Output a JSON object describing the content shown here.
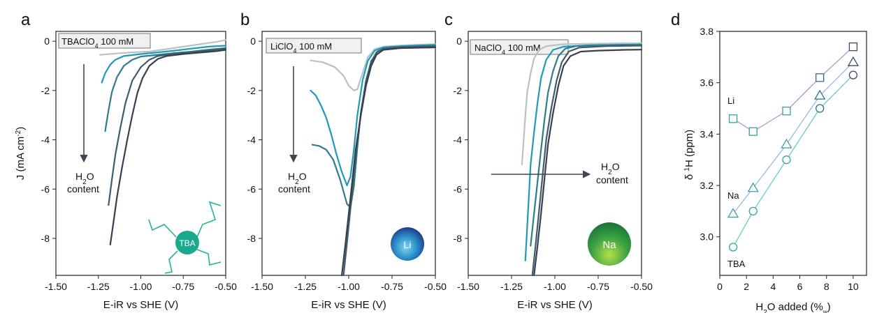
{
  "chart_data": [
    {
      "type": "line",
      "panel_label": "a",
      "box_label": "TBAClO",
      "box_label_sub": "4",
      "box_label_rest": " 100 mM",
      "xlabel": "E-iR vs SHE (V)",
      "ylabel_main": "J (mA cm",
      "ylabel_sup": "-2",
      "ylabel_end": ")",
      "xlim": [
        -1.5,
        -0.5
      ],
      "ylim": [
        -9.5,
        0.4
      ],
      "xticks": [
        -1.5,
        -1.25,
        -1.0,
        -0.75,
        -0.5
      ],
      "xtick_labels": [
        "-1.50",
        "-1.25",
        "-1.00",
        "-0.75",
        "-0.50"
      ],
      "yticks": [
        0,
        -2,
        -4,
        -6,
        -8
      ],
      "ytick_labels": [
        "0",
        "-2",
        "-4",
        "-6",
        "-8"
      ],
      "annotation": {
        "line1_pre": "H",
        "line1_sub": "2",
        "line1_post": "O",
        "line2": "content",
        "direction": "down"
      },
      "badge": {
        "text": "TBA",
        "color": "#1aa88e"
      },
      "series": [
        {
          "color": "#b6c3c6",
          "points": [
            [
              -1.24,
              -0.55
            ],
            [
              -1.15,
              -0.5
            ],
            [
              -1.05,
              -0.45
            ],
            [
              -0.95,
              -0.42
            ],
            [
              -0.85,
              -0.32
            ],
            [
              -0.75,
              -0.22
            ],
            [
              -0.65,
              -0.12
            ],
            [
              -0.55,
              -0.02
            ],
            [
              -0.5,
              0.05
            ]
          ]
        },
        {
          "color": "#1e9ab8",
          "points": [
            [
              -1.23,
              -1.68
            ],
            [
              -1.21,
              -1.3
            ],
            [
              -1.18,
              -0.95
            ],
            [
              -1.15,
              -0.75
            ],
            [
              -1.1,
              -0.6
            ],
            [
              -1.0,
              -0.52
            ],
            [
              -0.9,
              -0.45
            ],
            [
              -0.8,
              -0.38
            ],
            [
              -0.7,
              -0.3
            ],
            [
              -0.6,
              -0.22
            ],
            [
              -0.5,
              -0.18
            ]
          ]
        },
        {
          "color": "#2d7d8c",
          "points": [
            [
              -1.21,
              -3.65
            ],
            [
              -1.19,
              -2.8
            ],
            [
              -1.17,
              -2.05
            ],
            [
              -1.14,
              -1.45
            ],
            [
              -1.1,
              -1.0
            ],
            [
              -1.05,
              -0.75
            ],
            [
              -1.0,
              -0.62
            ],
            [
              -0.9,
              -0.55
            ],
            [
              -0.8,
              -0.48
            ],
            [
              -0.7,
              -0.42
            ],
            [
              -0.6,
              -0.34
            ],
            [
              -0.5,
              -0.28
            ]
          ]
        },
        {
          "color": "#3e5c6b",
          "points": [
            [
              -1.19,
              -6.65
            ],
            [
              -1.17,
              -5.6
            ],
            [
              -1.15,
              -4.6
            ],
            [
              -1.12,
              -3.5
            ],
            [
              -1.09,
              -2.5
            ],
            [
              -1.05,
              -1.6
            ],
            [
              -1.0,
              -1.05
            ],
            [
              -0.95,
              -0.75
            ],
            [
              -0.9,
              -0.6
            ],
            [
              -0.8,
              -0.5
            ],
            [
              -0.7,
              -0.45
            ],
            [
              -0.6,
              -0.38
            ],
            [
              -0.5,
              -0.3
            ]
          ]
        },
        {
          "color": "#3b3d4e",
          "points": [
            [
              -1.18,
              -8.25
            ],
            [
              -1.16,
              -7.3
            ],
            [
              -1.14,
              -6.3
            ],
            [
              -1.11,
              -5.1
            ],
            [
              -1.08,
              -4.0
            ],
            [
              -1.05,
              -3.0
            ],
            [
              -1.02,
              -2.1
            ],
            [
              -0.99,
              -1.5
            ],
            [
              -0.95,
              -1.0
            ],
            [
              -0.9,
              -0.72
            ],
            [
              -0.85,
              -0.6
            ],
            [
              -0.75,
              -0.52
            ],
            [
              -0.65,
              -0.46
            ],
            [
              -0.55,
              -0.4
            ],
            [
              -0.5,
              -0.35
            ]
          ]
        }
      ]
    },
    {
      "type": "line",
      "panel_label": "b",
      "box_label": "LiClO",
      "box_label_sub": "4",
      "box_label_rest": " 100 mM",
      "xlabel": "E-iR vs SHE (V)",
      "xlim": [
        -1.5,
        -0.5
      ],
      "ylim": [
        -9.5,
        0.4
      ],
      "xticks": [
        -1.5,
        -1.25,
        -1.0,
        -0.75,
        -0.5
      ],
      "xtick_labels": [
        "-1.50",
        "-1.25",
        "-1.00",
        "-0.75",
        "-0.50"
      ],
      "yticks": [
        0,
        -2,
        -4,
        -6,
        -8
      ],
      "ytick_labels": [
        "0",
        "-2",
        "-4",
        "-6",
        "-8"
      ],
      "annotation": {
        "line1_pre": "H",
        "line1_sub": "2",
        "line1_post": "O",
        "line2": "content",
        "direction": "down"
      },
      "badge": {
        "text": "Li",
        "color": "#2a8fc9"
      },
      "series": [
        {
          "color": "#b6c3c6",
          "points": [
            [
              -1.22,
              -0.78
            ],
            [
              -1.15,
              -0.85
            ],
            [
              -1.08,
              -1.05
            ],
            [
              -1.03,
              -1.4
            ],
            [
              -1.0,
              -1.8
            ],
            [
              -0.97,
              -2.0
            ],
            [
              -0.95,
              -1.95
            ],
            [
              -0.92,
              -1.3
            ],
            [
              -0.89,
              -0.65
            ],
            [
              -0.85,
              -0.32
            ],
            [
              -0.8,
              -0.22
            ],
            [
              -0.7,
              -0.17
            ],
            [
              -0.6,
              -0.14
            ],
            [
              -0.5,
              -0.12
            ]
          ]
        },
        {
          "color": "#1e9ab8",
          "points": [
            [
              -1.22,
              -2.0
            ],
            [
              -1.19,
              -2.2
            ],
            [
              -1.16,
              -2.6
            ],
            [
              -1.13,
              -3.1
            ],
            [
              -1.1,
              -3.8
            ],
            [
              -1.07,
              -4.6
            ],
            [
              -1.04,
              -5.3
            ],
            [
              -1.01,
              -5.85
            ],
            [
              -0.99,
              -5.5
            ],
            [
              -0.97,
              -4.4
            ],
            [
              -0.95,
              -3.0
            ],
            [
              -0.92,
              -1.6
            ],
            [
              -0.89,
              -0.8
            ],
            [
              -0.85,
              -0.38
            ],
            [
              -0.8,
              -0.25
            ],
            [
              -0.7,
              -0.2
            ],
            [
              -0.5,
              -0.15
            ]
          ]
        },
        {
          "color": "#2d7d8c",
          "points": [
            [
              -1.21,
              -4.2
            ],
            [
              -1.17,
              -4.25
            ],
            [
              -1.13,
              -4.4
            ],
            [
              -1.09,
              -4.8
            ],
            [
              -1.05,
              -5.6
            ],
            [
              -1.01,
              -6.6
            ],
            [
              -0.99,
              -6.75
            ],
            [
              -0.97,
              -5.9
            ],
            [
              -0.95,
              -4.3
            ],
            [
              -0.93,
              -2.9
            ],
            [
              -0.9,
              -1.6
            ],
            [
              -0.87,
              -0.8
            ],
            [
              -0.83,
              -0.4
            ],
            [
              -0.75,
              -0.25
            ],
            [
              -0.6,
              -0.2
            ],
            [
              -0.5,
              -0.18
            ]
          ]
        },
        {
          "color": "#3e5c6b",
          "points": [
            [
              -1.03,
              -9.5
            ],
            [
              -1.01,
              -8.2
            ],
            [
              -0.99,
              -6.8
            ],
            [
              -0.97,
              -5.4
            ],
            [
              -0.95,
              -4.1
            ],
            [
              -0.93,
              -2.9
            ],
            [
              -0.9,
              -1.6
            ],
            [
              -0.87,
              -0.85
            ],
            [
              -0.84,
              -0.45
            ],
            [
              -0.8,
              -0.3
            ],
            [
              -0.7,
              -0.25
            ],
            [
              -0.5,
              -0.22
            ]
          ]
        },
        {
          "color": "#3b3d4e",
          "points": [
            [
              -1.04,
              -9.5
            ],
            [
              -1.02,
              -8.3
            ],
            [
              -1.0,
              -7.0
            ],
            [
              -0.98,
              -5.7
            ],
            [
              -0.96,
              -4.4
            ],
            [
              -0.93,
              -3.0
            ],
            [
              -0.9,
              -1.8
            ],
            [
              -0.87,
              -1.0
            ],
            [
              -0.84,
              -0.55
            ],
            [
              -0.8,
              -0.35
            ],
            [
              -0.7,
              -0.28
            ],
            [
              -0.5,
              -0.25
            ]
          ]
        }
      ]
    },
    {
      "type": "line",
      "panel_label": "c",
      "box_label": "NaClO",
      "box_label_sub": "4",
      "box_label_rest": " 100 mM",
      "xlabel": "E-iR vs SHE (V)",
      "xlim": [
        -1.5,
        -0.5
      ],
      "ylim": [
        -9.5,
        0.4
      ],
      "xticks": [
        -1.5,
        -1.25,
        -1.0,
        -0.75,
        -0.5
      ],
      "xtick_labels": [
        "-1.50",
        "-1.25",
        "-1.00",
        "-0.75",
        "-0.50"
      ],
      "yticks": [
        0,
        -2,
        -4,
        -6,
        -8
      ],
      "ytick_labels": [
        "0",
        "-2",
        "-4",
        "-6",
        "-8"
      ],
      "annotation": {
        "line1_pre": "H",
        "line1_sub": "2",
        "line1_post": "O",
        "line2": "content",
        "direction": "right"
      },
      "badge": {
        "text": "Na",
        "color": "#3aa043"
      },
      "series": [
        {
          "color": "#b6c3c6",
          "points": [
            [
              -1.19,
              -5.0
            ],
            [
              -1.18,
              -4.0
            ],
            [
              -1.17,
              -3.0
            ],
            [
              -1.16,
              -2.1
            ],
            [
              -1.14,
              -1.3
            ],
            [
              -1.12,
              -0.7
            ],
            [
              -1.09,
              -0.35
            ],
            [
              -1.05,
              -0.2
            ],
            [
              -0.95,
              -0.12
            ],
            [
              -0.8,
              -0.1
            ],
            [
              -0.6,
              -0.08
            ],
            [
              -0.5,
              -0.08
            ]
          ]
        },
        {
          "color": "#1e9ab8",
          "points": [
            [
              -1.17,
              -8.9
            ],
            [
              -1.16,
              -7.6
            ],
            [
              -1.15,
              -6.3
            ],
            [
              -1.14,
              -5.0
            ],
            [
              -1.12,
              -3.7
            ],
            [
              -1.1,
              -2.5
            ],
            [
              -1.08,
              -1.5
            ],
            [
              -1.05,
              -0.75
            ],
            [
              -1.01,
              -0.35
            ],
            [
              -0.95,
              -0.22
            ],
            [
              -0.8,
              -0.16
            ],
            [
              -0.6,
              -0.14
            ],
            [
              -0.5,
              -0.13
            ]
          ]
        },
        {
          "color": "#2d7d8c",
          "points": [
            [
              -1.14,
              -8.3
            ],
            [
              -1.12,
              -7.0
            ],
            [
              -1.1,
              -5.7
            ],
            [
              -1.08,
              -4.4
            ],
            [
              -1.06,
              -3.2
            ],
            [
              -1.04,
              -2.1
            ],
            [
              -1.01,
              -1.2
            ],
            [
              -0.98,
              -0.6
            ],
            [
              -0.94,
              -0.3
            ],
            [
              -0.88,
              -0.2
            ],
            [
              -0.7,
              -0.16
            ],
            [
              -0.5,
              -0.15
            ]
          ]
        },
        {
          "color": "#3e5c6b",
          "points": [
            [
              -1.13,
              -9.5
            ],
            [
              -1.11,
              -8.2
            ],
            [
              -1.09,
              -6.8
            ],
            [
              -1.07,
              -5.4
            ],
            [
              -1.05,
              -4.0
            ],
            [
              -1.02,
              -2.7
            ],
            [
              -0.99,
              -1.6
            ],
            [
              -0.96,
              -0.85
            ],
            [
              -0.92,
              -0.42
            ],
            [
              -0.86,
              -0.26
            ],
            [
              -0.7,
              -0.2
            ],
            [
              -0.5,
              -0.18
            ]
          ]
        },
        {
          "color": "#3b3d4e",
          "points": [
            [
              -1.12,
              -9.5
            ],
            [
              -1.1,
              -8.3
            ],
            [
              -1.08,
              -7.0
            ],
            [
              -1.06,
              -5.6
            ],
            [
              -1.04,
              -4.2
            ],
            [
              -1.01,
              -2.9
            ],
            [
              -0.98,
              -1.8
            ],
            [
              -0.95,
              -1.0
            ],
            [
              -0.91,
              -0.6
            ],
            [
              -0.85,
              -0.42
            ],
            [
              -0.75,
              -0.38
            ],
            [
              -0.6,
              -0.35
            ],
            [
              -0.5,
              -0.34
            ]
          ]
        }
      ]
    },
    {
      "type": "scatter",
      "panel_label": "d",
      "xlabel_pre": "H",
      "xlabel_sub": "2",
      "xlabel_post": "O added (%",
      "xlabel_sub2": "w",
      "xlabel_end": ")",
      "ylabel_pre": "δ ",
      "ylabel_sup": "1",
      "ylabel_post": "H (ppm)",
      "xlim": [
        0,
        11
      ],
      "ylim": [
        2.85,
        3.8
      ],
      "xticks": [
        0,
        2,
        4,
        6,
        8,
        10
      ],
      "xtick_labels": [
        "0",
        "2",
        "4",
        "6",
        "8",
        "10"
      ],
      "yticks": [
        3.0,
        3.2,
        3.4,
        3.6,
        3.8
      ],
      "ytick_labels": [
        "3.0",
        "3.2",
        "3.4",
        "3.6",
        "3.8"
      ],
      "series": [
        {
          "name": "Li",
          "marker": "square",
          "fill": "#34a3a0",
          "line": "#b58ac4",
          "x": [
            1,
            2.5,
            5,
            7.5,
            10
          ],
          "y": [
            3.46,
            3.41,
            3.49,
            3.62,
            3.74
          ],
          "last_color": "#3a4a72"
        },
        {
          "name": "Na",
          "marker": "triangle",
          "fill": "#34a3a0",
          "line": "#8fb7df",
          "x": [
            1,
            2.5,
            5,
            7.5,
            10
          ],
          "y": [
            3.09,
            3.19,
            3.36,
            3.55,
            3.68
          ],
          "last_color": "#3a4a72"
        },
        {
          "name": "TBA",
          "marker": "circle",
          "fill": "#34a3a0",
          "line": "#5ec7c0",
          "x": [
            1,
            2.5,
            5,
            7.5,
            10
          ],
          "y": [
            2.96,
            3.1,
            3.3,
            3.5,
            3.63
          ],
          "last_color": "#3a4a72"
        }
      ],
      "series_label_positions": [
        "Li",
        "Na",
        "TBA"
      ]
    }
  ]
}
